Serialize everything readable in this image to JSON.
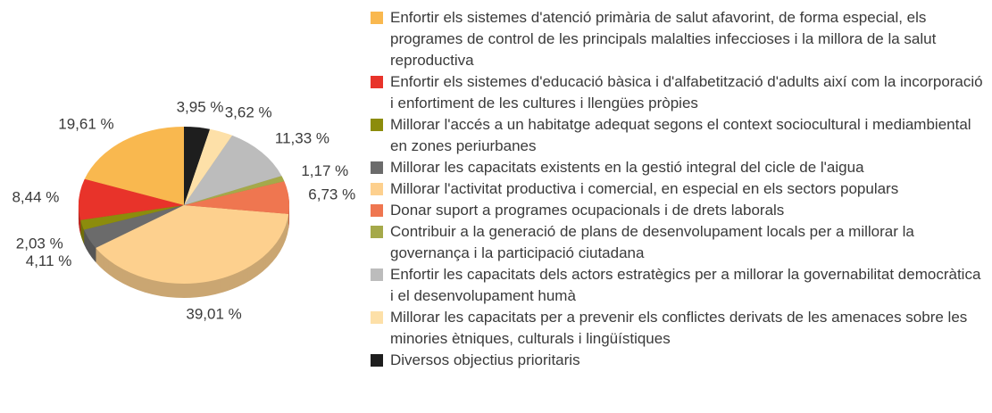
{
  "chart_data": {
    "type": "pie",
    "categories": [
      "Enfortir els sistemes d'atenció primària de salut afavorint, de forma especial, els programes de control de les principals malalties infeccioses i la millora de la salut reproductiva",
      "Enfortir els sistemes d'educació bàsica i d'alfabetització d'adults així com la incorporació i enfortiment de les cultures i llengües pròpies",
      "Millorar l'accés a un habitatge adequat segons el context sociocultural i mediambiental en zones periurbanes",
      "Millorar les capacitats existents en la gestió integral del cicle de l'aigua",
      "Millorar l'activitat productiva i comercial, en especial en els sectors populars",
      "Donar suport a programes ocupacionals i de drets laborals",
      "Contribuir a la generació de plans de desenvolupament locals per a millorar la governança i la participació ciutadana",
      "Enfortir les capacitats dels actors estratègics per a millorar la governabilitat democràtica i el desenvolupament humà",
      "Millorar les capacitats per a prevenir els conflictes derivats de les amenaces sobre les minories ètniques, culturals i lingüístiques",
      "Diversos objectius prioritaris"
    ],
    "values": [
      19.61,
      8.44,
      2.03,
      4.11,
      39.01,
      6.73,
      1.17,
      11.33,
      3.62,
      3.95
    ],
    "value_labels": [
      "19,61 %",
      "8,44 %",
      "2,03 %",
      "4,11 %",
      "39,01 %",
      "6,73 %",
      "1,17 %",
      "11,33 %",
      "3,62 %",
      "3,95 %"
    ],
    "colors": [
      "#f9b84f",
      "#e8332a",
      "#8c8c0c",
      "#6b6b6b",
      "#fdd08e",
      "#ef7650",
      "#a5a94a",
      "#bcbcbc",
      "#fde0a8",
      "#1e1e1e"
    ]
  }
}
